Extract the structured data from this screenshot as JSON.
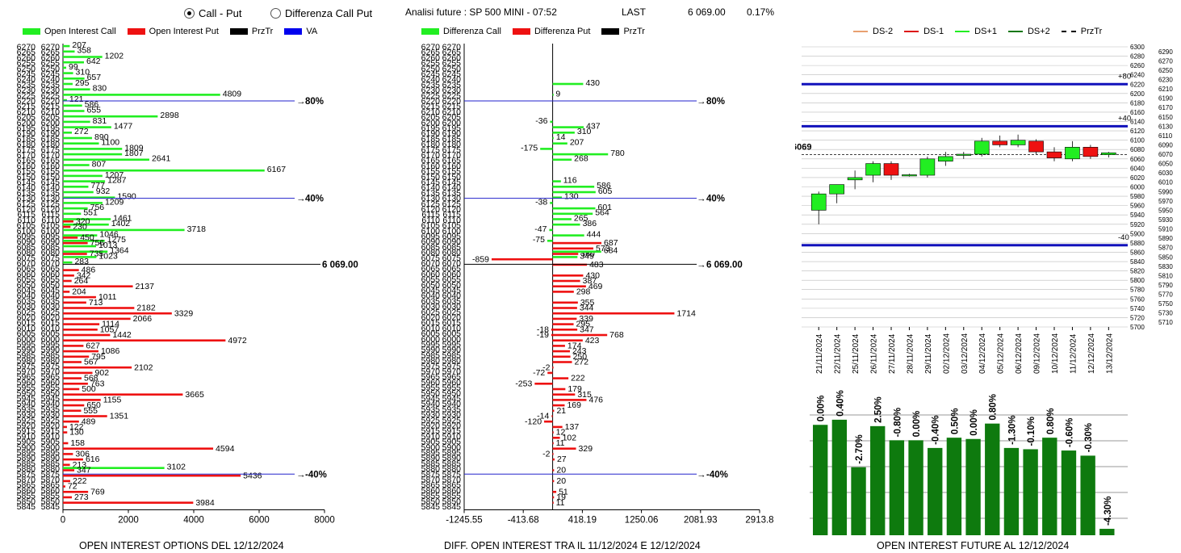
{
  "header": {
    "radio_call_put": "Call - Put",
    "radio_diff": "Differenza Call Put",
    "title": "Analisi future : SP 500 MINI - 07:52",
    "last_label": "LAST",
    "last_value": "6 069.00",
    "last_pct": "0.17%"
  },
  "legend_left": [
    {
      "label": "Open Interest Call",
      "color": "#22ee22"
    },
    {
      "label": "Open Interest Put",
      "color": "#ee1111"
    },
    {
      "label": "PrzTr",
      "color": "#000000"
    },
    {
      "label": "VA",
      "color": "#0000ee"
    }
  ],
  "legend_mid": [
    {
      "label": "Differenza Call",
      "color": "#22ee22"
    },
    {
      "label": "Differenza Put",
      "color": "#ee1111"
    },
    {
      "label": "PrzTr",
      "color": "#000000"
    }
  ],
  "legend_right": [
    {
      "label": "DS-2",
      "color": "#e8a070",
      "dash": false
    },
    {
      "label": "DS-1",
      "color": "#dd1111",
      "dash": false
    },
    {
      "label": "DS+1",
      "color": "#22ee22",
      "dash": false
    },
    {
      "label": "DS+2",
      "color": "#117711",
      "dash": false
    },
    {
      "label": "PrzTr",
      "color": "#000000",
      "dash": true
    }
  ],
  "captions": {
    "left": "OPEN INTEREST OPTIONS DEL 12/12/2024",
    "mid": "DIFF. OPEN INTEREST TRA IL 11/12/2024 E 12/12/2024",
    "right": "OPEN INTEREST FUTURE AL 12/12/2024"
  },
  "chart_data": [
    {
      "type": "bar",
      "orientation": "horizontal",
      "strikes": [
        6270,
        6265,
        6260,
        6255,
        6250,
        6245,
        6240,
        6235,
        6230,
        6225,
        6220,
        6215,
        6210,
        6205,
        6200,
        6195,
        6190,
        6185,
        6180,
        6175,
        6170,
        6165,
        6160,
        6155,
        6150,
        6145,
        6140,
        6135,
        6130,
        6125,
        6120,
        6115,
        6110,
        6105,
        6100,
        6095,
        6090,
        6085,
        6080,
        6075,
        6070,
        6065,
        6060,
        6055,
        6050,
        6045,
        6040,
        6035,
        6030,
        6025,
        6020,
        6015,
        6010,
        6005,
        6000,
        5995,
        5990,
        5985,
        5980,
        5975,
        5970,
        5965,
        5960,
        5955,
        5950,
        5945,
        5940,
        5935,
        5930,
        5925,
        5920,
        5915,
        5910,
        5905,
        5900,
        5895,
        5890,
        5885,
        5880,
        5875,
        5870,
        5865,
        5860,
        5855,
        5850,
        5845
      ],
      "series": [
        {
          "name": "Open Interest Call",
          "values": [
            207,
            358,
            1202,
            642,
            99,
            310,
            657,
            295,
            830,
            4809,
            121,
            586,
            655,
            2898,
            831,
            1477,
            272,
            890,
            1100,
            1809,
            1807,
            2641,
            807,
            6167,
            1207,
            1287,
            777,
            932,
            1590,
            1209,
            756,
            551,
            1461,
            1402,
            3718,
            1046,
            1275,
            1013,
            1364,
            1023,
            283,
            0,
            0,
            0,
            0,
            0,
            0,
            0,
            0,
            0,
            0,
            0,
            0,
            0,
            0,
            0,
            0,
            0,
            0,
            0,
            0,
            0,
            0,
            0,
            0,
            0,
            0,
            0,
            0,
            0,
            0,
            0,
            0,
            0,
            0,
            0,
            0,
            0,
            3102,
            0,
            0,
            0,
            0,
            0,
            0,
            0
          ]
        },
        {
          "name": "Open Interest Put",
          "values": [
            0,
            0,
            0,
            0,
            0,
            0,
            0,
            0,
            0,
            0,
            0,
            0,
            0,
            0,
            0,
            0,
            0,
            0,
            0,
            0,
            0,
            0,
            0,
            0,
            0,
            0,
            0,
            0,
            0,
            0,
            0,
            0,
            320,
            230,
            0,
            450,
            756,
            0,
            735,
            0,
            0,
            486,
            342,
            264,
            2137,
            204,
            1011,
            713,
            2182,
            3329,
            2066,
            1114,
            1057,
            1442,
            4972,
            627,
            1086,
            795,
            567,
            2102,
            902,
            568,
            763,
            500,
            3665,
            1155,
            650,
            555,
            1351,
            489,
            122,
            130,
            0,
            158,
            4594,
            306,
            616,
            213,
            347,
            5436,
            222,
            72,
            769,
            273,
            3984,
            0
          ]
        }
      ],
      "reference_lines": [
        {
          "label": "80%",
          "strike": 6220
        },
        {
          "label": "40%",
          "strike": 6130
        },
        {
          "label": "6 069.00",
          "strike": 6069
        },
        {
          "label": "-40%",
          "strike": 5875
        }
      ],
      "xticks": [
        "0",
        "2000",
        "4000",
        "6000",
        "8000"
      ],
      "xlim": [
        0,
        8000
      ]
    },
    {
      "type": "bar",
      "orientation": "horizontal",
      "labels": [
        {
          "strike": 6235,
          "value": 430,
          "side": "call"
        },
        {
          "strike": 6225,
          "value": 9,
          "side": "call"
        },
        {
          "strike": 6200,
          "value": -36,
          "side": "call"
        },
        {
          "strike": 6195,
          "value": 437,
          "side": "call"
        },
        {
          "strike": 6190,
          "value": 310,
          "side": "call"
        },
        {
          "strike": 6185,
          "value": 14,
          "side": "call"
        },
        {
          "strike": 6180,
          "value": 207,
          "side": "call"
        },
        {
          "strike": 6175,
          "value": -175,
          "side": "call"
        },
        {
          "strike": 6170,
          "value": 780,
          "side": "call"
        },
        {
          "strike": 6165,
          "value": 268,
          "side": "call"
        },
        {
          "strike": 6145,
          "value": 116,
          "side": "call"
        },
        {
          "strike": 6140,
          "value": 586,
          "side": "call"
        },
        {
          "strike": 6135,
          "value": 605,
          "side": "call"
        },
        {
          "strike": 6130,
          "value": 130,
          "side": "call"
        },
        {
          "strike": 6125,
          "value": -38,
          "side": "call"
        },
        {
          "strike": 6120,
          "value": 601,
          "side": "call"
        },
        {
          "strike": 6115,
          "value": 564,
          "side": "call"
        },
        {
          "strike": 6110,
          "value": 265,
          "side": "call"
        },
        {
          "strike": 6105,
          "value": 386,
          "side": "call"
        },
        {
          "strike": 6100,
          "value": -47,
          "side": "call"
        },
        {
          "strike": 6095,
          "value": 444,
          "side": "call"
        },
        {
          "strike": 6090,
          "value": -75,
          "side": "call"
        },
        {
          "strike": 6090,
          "value": 687,
          "side": "put"
        },
        {
          "strike": 6085,
          "value": 573,
          "side": "put"
        },
        {
          "strike": 6080,
          "value": 360,
          "side": "put"
        },
        {
          "strike": 6080,
          "value": 684,
          "side": "call"
        },
        {
          "strike": 6075,
          "value": -859,
          "side": "put"
        },
        {
          "strike": 6075,
          "value": 349,
          "side": "call"
        },
        {
          "strike": 6070,
          "value": 483,
          "side": "put"
        },
        {
          "strike": 6060,
          "value": 430,
          "side": "put"
        },
        {
          "strike": 6055,
          "value": 387,
          "side": "put"
        },
        {
          "strike": 6050,
          "value": 469,
          "side": "put"
        },
        {
          "strike": 6045,
          "value": 298,
          "side": "put"
        },
        {
          "strike": 6035,
          "value": 355,
          "side": "put"
        },
        {
          "strike": 6030,
          "value": 344,
          "side": "put"
        },
        {
          "strike": 6025,
          "value": 1714,
          "side": "put"
        },
        {
          "strike": 6020,
          "value": 339,
          "side": "put"
        },
        {
          "strike": 6015,
          "value": 295,
          "side": "put"
        },
        {
          "strike": 6010,
          "value": -18,
          "side": "put"
        },
        {
          "strike": 6010,
          "value": 347,
          "side": "put"
        },
        {
          "strike": 6005,
          "value": 768,
          "side": "put"
        },
        {
          "strike": 6005,
          "value": -19,
          "side": "put"
        },
        {
          "strike": 6000,
          "value": 423,
          "side": "put"
        },
        {
          "strike": 5995,
          "value": 174,
          "side": "put"
        },
        {
          "strike": 5990,
          "value": 243,
          "side": "put"
        },
        {
          "strike": 5985,
          "value": 250,
          "side": "put"
        },
        {
          "strike": 5980,
          "value": 272,
          "side": "put"
        },
        {
          "strike": 5975,
          "value": -2,
          "side": "put"
        },
        {
          "strike": 5970,
          "value": -72,
          "side": "put"
        },
        {
          "strike": 5965,
          "value": 222,
          "side": "put"
        },
        {
          "strike": 5960,
          "value": -253,
          "side": "put"
        },
        {
          "strike": 5955,
          "value": 179,
          "side": "put"
        },
        {
          "strike": 5950,
          "value": 315,
          "side": "put"
        },
        {
          "strike": 5945,
          "value": 476,
          "side": "put"
        },
        {
          "strike": 5940,
          "value": 169,
          "side": "put"
        },
        {
          "strike": 5935,
          "value": 21,
          "side": "put"
        },
        {
          "strike": 5930,
          "value": -14,
          "side": "put"
        },
        {
          "strike": 5925,
          "value": -120,
          "side": "put"
        },
        {
          "strike": 5920,
          "value": 137,
          "side": "put"
        },
        {
          "strike": 5915,
          "value": 12,
          "side": "put"
        },
        {
          "strike": 5910,
          "value": 102,
          "side": "put"
        },
        {
          "strike": 5905,
          "value": 11,
          "side": "put"
        },
        {
          "strike": 5900,
          "value": 329,
          "side": "put"
        },
        {
          "strike": 5895,
          "value": -2,
          "side": "put"
        },
        {
          "strike": 5890,
          "value": 27,
          "side": "put"
        },
        {
          "strike": 5880,
          "value": 20,
          "side": "put"
        },
        {
          "strike": 5870,
          "value": 20,
          "side": "put"
        },
        {
          "strike": 5860,
          "value": 51,
          "side": "put"
        },
        {
          "strike": 5855,
          "value": 19,
          "side": "put"
        },
        {
          "strike": 5850,
          "value": 11,
          "side": "put"
        }
      ],
      "reference_lines": [
        {
          "label": "80%",
          "strike": 6220
        },
        {
          "label": "40%",
          "strike": 6130
        },
        {
          "label": "6 069.00",
          "strike": 6069
        },
        {
          "label": "-40%",
          "strike": 5875
        }
      ],
      "xticks": [
        "-1245.55",
        "-413.68",
        "418.19",
        "1250.06",
        "2081.93",
        "2913.8"
      ],
      "xlim": [
        -1245.55,
        2913.8
      ]
    },
    {
      "type": "candlestick",
      "dates": [
        "21/11/2024",
        "22/11/2024",
        "25/11/2024",
        "26/11/2024",
        "27/11/2024",
        "28/11/2024",
        "29/11/2024",
        "02/12/2024",
        "03/12/2024",
        "04/12/2024",
        "05/12/2024",
        "06/12/2024",
        "09/12/2024",
        "10/12/2024",
        "11/12/2024",
        "12/12/2024",
        "13/12/2024"
      ],
      "candles": [
        {
          "open": 5950,
          "high": 5990,
          "low": 5920,
          "close": 5985
        },
        {
          "open": 5985,
          "high": 6005,
          "low": 5965,
          "close": 6005
        },
        {
          "open": 6015,
          "high": 6035,
          "low": 5995,
          "close": 6020
        },
        {
          "open": 6025,
          "high": 6055,
          "low": 6010,
          "close": 6050
        },
        {
          "open": 6050,
          "high": 6055,
          "low": 6015,
          "close": 6025
        },
        {
          "open": 6025,
          "high": 6028,
          "low": 6022,
          "close": 6026
        },
        {
          "open": 6025,
          "high": 6065,
          "low": 6020,
          "close": 6060
        },
        {
          "open": 6055,
          "high": 6075,
          "low": 6045,
          "close": 6065
        },
        {
          "open": 6068,
          "high": 6075,
          "low": 6060,
          "close": 6070
        },
        {
          "open": 6070,
          "high": 6105,
          "low": 6065,
          "close": 6098
        },
        {
          "open": 6098,
          "high": 6110,
          "low": 6085,
          "close": 6090
        },
        {
          "open": 6090,
          "high": 6112,
          "low": 6085,
          "close": 6100
        },
        {
          "open": 6098,
          "high": 6102,
          "low": 6070,
          "close": 6075
        },
        {
          "open": 6075,
          "high": 6085,
          "low": 6055,
          "close": 6062
        },
        {
          "open": 6060,
          "high": 6098,
          "low": 6055,
          "close": 6085
        },
        {
          "open": 6085,
          "high": 6090,
          "low": 6060,
          "close": 6065
        },
        {
          "open": 6069,
          "high": 6075,
          "low": 6063,
          "close": 6073
        }
      ],
      "last_price_label": "6069",
      "last_price": 6069,
      "hlines": [
        {
          "label": "+80",
          "price": 6220
        },
        {
          "label": "+40",
          "price": 6130
        },
        {
          "label": "-40",
          "price": 5875
        }
      ],
      "yticks_inner": [
        "6300",
        "6280",
        "6260",
        "6240",
        "6220",
        "6200",
        "6180",
        "6160",
        "6140",
        "6120",
        "6100",
        "6080",
        "6060",
        "6040",
        "6020",
        "6000",
        "5980",
        "5960",
        "5940",
        "5920",
        "5900",
        "5880",
        "5860",
        "5840",
        "5820",
        "5800",
        "5780",
        "5760",
        "5740",
        "5720",
        "5700"
      ],
      "yticks_outer": [
        "6290",
        "6270",
        "6250",
        "6230",
        "6210",
        "6190",
        "6170",
        "6150",
        "6130",
        "6110",
        "6090",
        "6070",
        "6050",
        "6030",
        "6010",
        "5990",
        "5970",
        "5950",
        "5930",
        "5910",
        "5890",
        "5870",
        "5850",
        "5830",
        "5810",
        "5790",
        "5770",
        "5750",
        "5730",
        "5710"
      ],
      "ylim": [
        5700,
        6300
      ]
    },
    {
      "type": "bar",
      "labels": [
        "0.00%",
        "0.40%",
        "-2.70%",
        "2.50%",
        "-0.80%",
        "0.00%",
        "-0.40%",
        "0.50%",
        "0.00%",
        "0.80%",
        "-1.30%",
        "-0.10%",
        "0.80%",
        "-0.60%",
        "-0.30%",
        "-4.30%"
      ],
      "values": [
        0.0,
        0.4,
        -2.7,
        2.5,
        -0.8,
        0.0,
        -0.4,
        0.5,
        0.0,
        0.8,
        -1.3,
        -0.1,
        0.8,
        -0.6,
        -0.3,
        -4.3
      ],
      "relative_heights": [
        0.86,
        0.9,
        0.53,
        0.85,
        0.74,
        0.74,
        0.68,
        0.76,
        0.75,
        0.87,
        0.68,
        0.67,
        0.76,
        0.66,
        0.62,
        0.05
      ],
      "color": "#0e7a0e"
    }
  ]
}
